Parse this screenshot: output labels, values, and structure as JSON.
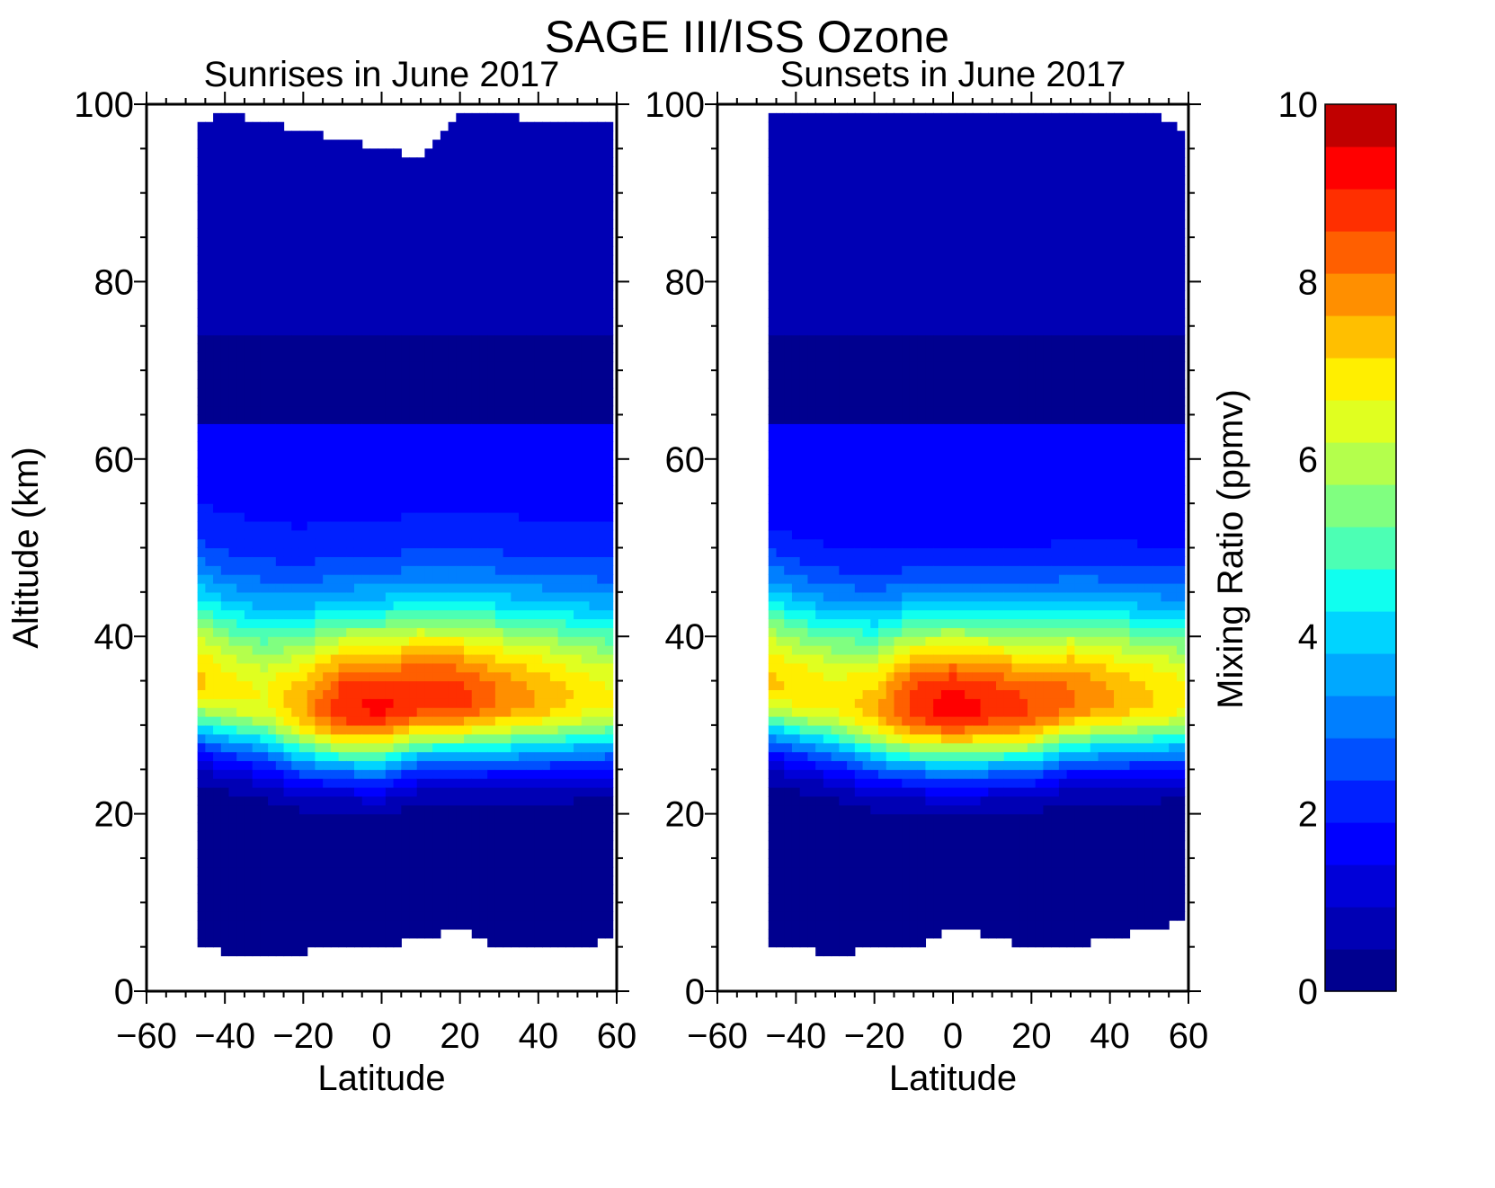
{
  "chart_data": {
    "type": "heatmap",
    "title": "SAGE III/ISS Ozone",
    "colorbar": {
      "label": "Mixing Ratio (ppmv)",
      "range": [
        0,
        10
      ],
      "step": 0.5,
      "ticks": [
        "0",
        "2",
        "4",
        "6",
        "8",
        "10"
      ],
      "colors": [
        "#00008f",
        "#0000b4",
        "#0000d8",
        "#0000ff",
        "#0020ff",
        "#0050ff",
        "#007fff",
        "#00a8ff",
        "#00d4ff",
        "#10ffef",
        "#4cffb4",
        "#80ff80",
        "#b4ff4c",
        "#e0ff20",
        "#ffef00",
        "#ffbf00",
        "#ff8f00",
        "#ff5f00",
        "#ff2f00",
        "#ff0000",
        "#c00000"
      ]
    },
    "panels": [
      {
        "subtitle": "Sunrises in June 2017",
        "xlabel": "Latitude",
        "ylabel": "Altitude (km)",
        "xlim": [
          -60,
          60
        ],
        "ylim": [
          0,
          100
        ],
        "xticks": [
          "−60",
          "−40",
          "−20",
          "0",
          "20",
          "40",
          "60"
        ],
        "yticks": [
          "0",
          "20",
          "40",
          "60",
          "80",
          "100"
        ],
        "data_extent_lat": [
          -47,
          59
        ],
        "profile_lat": [
          -47,
          -40,
          -30,
          -20,
          -10,
          0,
          10,
          20,
          30,
          40,
          50,
          59
        ],
        "bottom_km": [
          5,
          4.5,
          4,
          4.5,
          5,
          5,
          6,
          7,
          5,
          5,
          5,
          6
        ],
        "top_km": [
          98,
          99,
          98,
          97,
          96,
          95,
          94,
          99,
          99,
          98,
          98,
          98
        ],
        "peak_alt_km": [
          35,
          34,
          33,
          32,
          32,
          32,
          33,
          33,
          33,
          33,
          33,
          33
        ],
        "peak_ppmv": [
          7.6,
          7.2,
          7.0,
          8.0,
          9.4,
          9.6,
          9.3,
          9.2,
          8.5,
          8.0,
          7.4,
          7.0
        ],
        "high_alt_ppmv": 1.8
      },
      {
        "subtitle": "Sunsets in June 2017",
        "xlabel": "Latitude",
        "ylabel": "",
        "xlim": [
          -60,
          60
        ],
        "ylim": [
          0,
          100
        ],
        "xticks": [
          "−60",
          "−40",
          "−20",
          "0",
          "20",
          "40",
          "60"
        ],
        "yticks": [
          "0",
          "20",
          "40",
          "60",
          "80",
          "100"
        ],
        "data_extent_lat": [
          -47,
          59
        ],
        "profile_lat": [
          -47,
          -40,
          -30,
          -20,
          -10,
          0,
          10,
          20,
          30,
          40,
          50,
          59
        ],
        "bottom_km": [
          5,
          5,
          4,
          5,
          5,
          7.5,
          6,
          5,
          5,
          6,
          7,
          8
        ],
        "top_km": [
          99,
          99,
          99,
          99,
          99,
          99,
          99,
          99,
          99,
          99,
          99,
          97
        ],
        "peak_alt_km": [
          35,
          34,
          33,
          32,
          32,
          32,
          32,
          32,
          33,
          33,
          33,
          33
        ],
        "peak_ppmv": [
          7.6,
          7.4,
          7.2,
          7.8,
          9.3,
          9.8,
          9.4,
          9.0,
          8.6,
          8.1,
          7.6,
          7.2
        ],
        "high_alt_ppmv": 1.5
      }
    ]
  }
}
